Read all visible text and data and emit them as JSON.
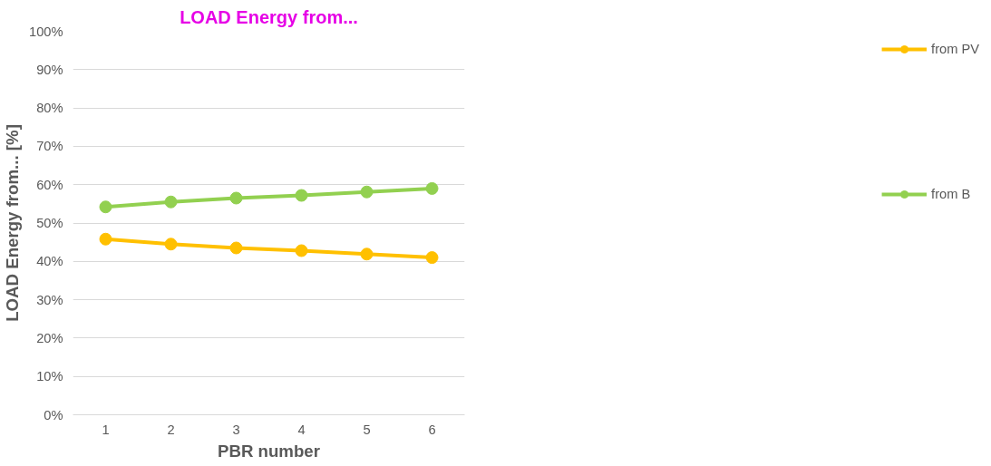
{
  "chart_data": {
    "type": "line",
    "title": "LOAD Energy from...",
    "xlabel": "PBR number",
    "ylabel": "LOAD Energy from... [%]",
    "categories": [
      "1",
      "2",
      "3",
      "4",
      "5",
      "6"
    ],
    "series": [
      {
        "name": "from PV",
        "color": "#ffc000",
        "values": [
          45.8,
          44.5,
          43.5,
          42.8,
          41.9,
          41.0
        ]
      },
      {
        "name": "from B",
        "color": "#92d050",
        "values": [
          54.2,
          55.5,
          56.5,
          57.2,
          58.1,
          59.0
        ]
      }
    ],
    "ylim": [
      0,
      100
    ],
    "yticks": [
      {
        "value": 0,
        "label": "0%"
      },
      {
        "value": 10,
        "label": "10%"
      },
      {
        "value": 20,
        "label": "20%"
      },
      {
        "value": 30,
        "label": "30%"
      },
      {
        "value": 40,
        "label": "40%"
      },
      {
        "value": 50,
        "label": "50%"
      },
      {
        "value": 60,
        "label": "60%"
      },
      {
        "value": 70,
        "label": "70%"
      },
      {
        "value": 80,
        "label": "80%"
      },
      {
        "value": 90,
        "label": "90%"
      },
      {
        "value": 100,
        "label": "100%"
      }
    ],
    "grid": "y",
    "legend": "right",
    "marker": "circle",
    "line_style": "solid"
  }
}
